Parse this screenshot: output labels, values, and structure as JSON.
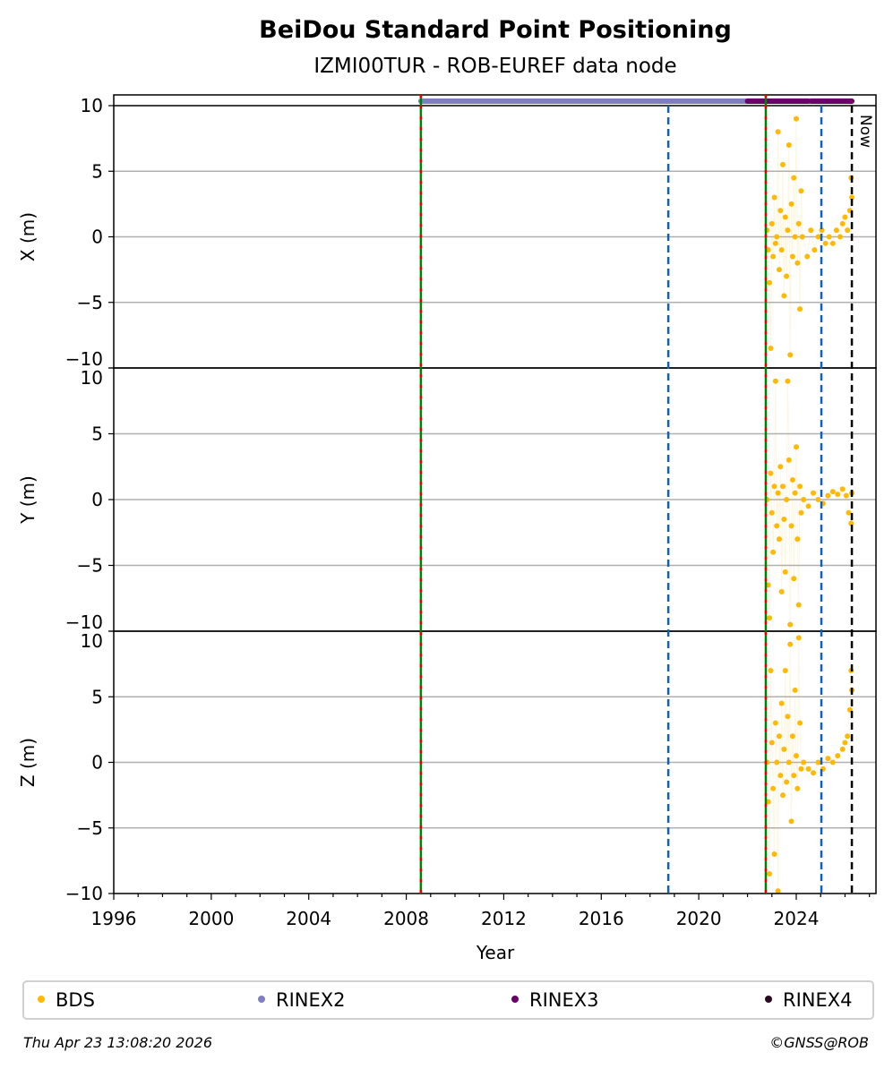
{
  "chart_data": {
    "type": "scatter",
    "title": "BeiDou Standard Point Positioning",
    "subtitle": "IZMI00TUR - ROB-EUREF data node",
    "xlabel": "Year",
    "xlim": [
      1996,
      2027.27
    ],
    "xticks": [
      "1996",
      "2000",
      "2004",
      "2008",
      "2012",
      "2016",
      "2020",
      "2024"
    ],
    "grid": true,
    "panels": [
      {
        "ylabel": "X (m)",
        "ylim": [
          -10,
          10
        ],
        "yticks": [
          "10",
          "5",
          "0",
          "−5",
          "−10"
        ],
        "points": [
          [
            2022.8,
            0.5
          ],
          [
            2022.85,
            -1
          ],
          [
            2022.9,
            -3.5
          ],
          [
            2022.95,
            -8.5
          ],
          [
            2023.0,
            1
          ],
          [
            2023.05,
            -1.5
          ],
          [
            2023.1,
            3
          ],
          [
            2023.15,
            -0.5
          ],
          [
            2023.2,
            0
          ],
          [
            2023.25,
            8
          ],
          [
            2023.3,
            -2.5
          ],
          [
            2023.35,
            2
          ],
          [
            2023.4,
            -1
          ],
          [
            2023.45,
            5.5
          ],
          [
            2023.5,
            -4.5
          ],
          [
            2023.55,
            1.5
          ],
          [
            2023.6,
            -3
          ],
          [
            2023.65,
            0.5
          ],
          [
            2023.7,
            7
          ],
          [
            2023.75,
            -9
          ],
          [
            2023.8,
            2.5
          ],
          [
            2023.85,
            -1.5
          ],
          [
            2023.9,
            4.5
          ],
          [
            2023.95,
            0
          ],
          [
            2024.0,
            9
          ],
          [
            2024.05,
            -2
          ],
          [
            2024.1,
            1
          ],
          [
            2024.15,
            -5.5
          ],
          [
            2024.2,
            3.5
          ],
          [
            2024.25,
            0
          ],
          [
            2024.45,
            -1.5
          ],
          [
            2024.6,
            0.5
          ],
          [
            2024.75,
            -1
          ],
          [
            2024.9,
            0
          ],
          [
            2025.05,
            0.5
          ],
          [
            2025.2,
            -0.5
          ],
          [
            2025.35,
            0
          ],
          [
            2025.5,
            -0.5
          ],
          [
            2025.65,
            0.5
          ],
          [
            2025.8,
            0
          ],
          [
            2025.9,
            1
          ],
          [
            2026.0,
            1.5
          ],
          [
            2026.1,
            0.5
          ],
          [
            2026.2,
            2
          ],
          [
            2026.25,
            4.5
          ],
          [
            2026.28,
            3
          ]
        ]
      },
      {
        "ylabel": "Y (m)",
        "ylim": [
          -10,
          10
        ],
        "yticks": [
          "10",
          "5",
          "0",
          "−5",
          "−10"
        ],
        "points": [
          [
            2022.8,
            0
          ],
          [
            2022.85,
            -6.5
          ],
          [
            2022.9,
            -9
          ],
          [
            2022.95,
            2
          ],
          [
            2023.0,
            -1
          ],
          [
            2023.05,
            -4
          ],
          [
            2023.1,
            1
          ],
          [
            2023.15,
            9
          ],
          [
            2023.2,
            -2
          ],
          [
            2023.25,
            0.5
          ],
          [
            2023.3,
            -3
          ],
          [
            2023.35,
            2.5
          ],
          [
            2023.4,
            -7
          ],
          [
            2023.45,
            1
          ],
          [
            2023.5,
            -1.5
          ],
          [
            2023.55,
            -5.5
          ],
          [
            2023.6,
            0
          ],
          [
            2023.65,
            9
          ],
          [
            2023.7,
            3
          ],
          [
            2023.75,
            -9.5
          ],
          [
            2023.8,
            -2
          ],
          [
            2023.85,
            1.5
          ],
          [
            2023.9,
            -6
          ],
          [
            2023.95,
            0.5
          ],
          [
            2024.0,
            4
          ],
          [
            2024.05,
            -3
          ],
          [
            2024.1,
            -8
          ],
          [
            2024.15,
            1
          ],
          [
            2024.2,
            -1
          ],
          [
            2024.3,
            0
          ],
          [
            2024.5,
            -0.5
          ],
          [
            2024.7,
            0.5
          ],
          [
            2024.9,
            0
          ],
          [
            2025.1,
            -0.3
          ],
          [
            2025.3,
            0.3
          ],
          [
            2025.5,
            0.6
          ],
          [
            2025.7,
            0.4
          ],
          [
            2025.9,
            0.8
          ],
          [
            2026.05,
            0.3
          ],
          [
            2026.15,
            -1
          ],
          [
            2026.25,
            -1.8
          ],
          [
            2026.28,
            0.5
          ]
        ]
      },
      {
        "ylabel": "Z (m)",
        "ylim": [
          -10,
          10
        ],
        "yticks": [
          "10",
          "5",
          "0",
          "−5",
          "−10"
        ],
        "points": [
          [
            2022.8,
            0
          ],
          [
            2022.85,
            -3
          ],
          [
            2022.9,
            -8.5
          ],
          [
            2022.95,
            7
          ],
          [
            2023.0,
            1.5
          ],
          [
            2023.05,
            -2
          ],
          [
            2023.1,
            -7
          ],
          [
            2023.15,
            3
          ],
          [
            2023.2,
            0
          ],
          [
            2023.25,
            -9.8
          ],
          [
            2023.3,
            2
          ],
          [
            2023.35,
            -1
          ],
          [
            2023.4,
            4.5
          ],
          [
            2023.45,
            -2.5
          ],
          [
            2023.5,
            1
          ],
          [
            2023.55,
            7
          ],
          [
            2023.6,
            -1.5
          ],
          [
            2023.65,
            3.5
          ],
          [
            2023.7,
            0
          ],
          [
            2023.75,
            9
          ],
          [
            2023.8,
            -4.5
          ],
          [
            2023.85,
            2
          ],
          [
            2023.9,
            -1
          ],
          [
            2023.95,
            5.5
          ],
          [
            2024.0,
            0.5
          ],
          [
            2024.05,
            -2
          ],
          [
            2024.1,
            9.5
          ],
          [
            2024.15,
            3
          ],
          [
            2024.2,
            -0.5
          ],
          [
            2024.3,
            0
          ],
          [
            2024.5,
            -0.5
          ],
          [
            2024.7,
            -0.8
          ],
          [
            2024.9,
            0
          ],
          [
            2025.1,
            -0.5
          ],
          [
            2025.3,
            0.3
          ],
          [
            2025.5,
            0
          ],
          [
            2025.7,
            0.5
          ],
          [
            2025.9,
            1
          ],
          [
            2026.0,
            1.5
          ],
          [
            2026.1,
            2
          ],
          [
            2026.2,
            4
          ],
          [
            2026.25,
            7
          ],
          [
            2026.28,
            5.5
          ]
        ]
      }
    ],
    "availability": [
      {
        "name": "RINEX2",
        "from": 2008.6,
        "to": 2022.1
      },
      {
        "name": "RINEX3",
        "from": 2022.0,
        "to": 2024.5
      },
      {
        "name": "RINEX3",
        "from": 2024.6,
        "to": 2026.28
      }
    ],
    "vlines": [
      {
        "x": 2008.6,
        "style": "red-green"
      },
      {
        "x": 2018.75,
        "style": "blue-dashed"
      },
      {
        "x": 2022.75,
        "style": "red-green"
      },
      {
        "x": 2025.03,
        "style": "blue-dashed"
      },
      {
        "x": 2026.28,
        "style": "black-dashed",
        "label": "Now"
      }
    ],
    "legend": {
      "placement": "bottom",
      "entries": [
        {
          "label": "BDS",
          "color": "#ffb900"
        },
        {
          "label": "RINEX2",
          "color": "#7f7fbf"
        },
        {
          "label": "RINEX3",
          "color": "#6b006b"
        },
        {
          "label": "RINEX4",
          "color": "#2a0a20"
        }
      ]
    }
  },
  "footer": {
    "timestamp": "Thu Apr 23 13:08:20 2026",
    "credit": "©GNSS@ROB"
  }
}
